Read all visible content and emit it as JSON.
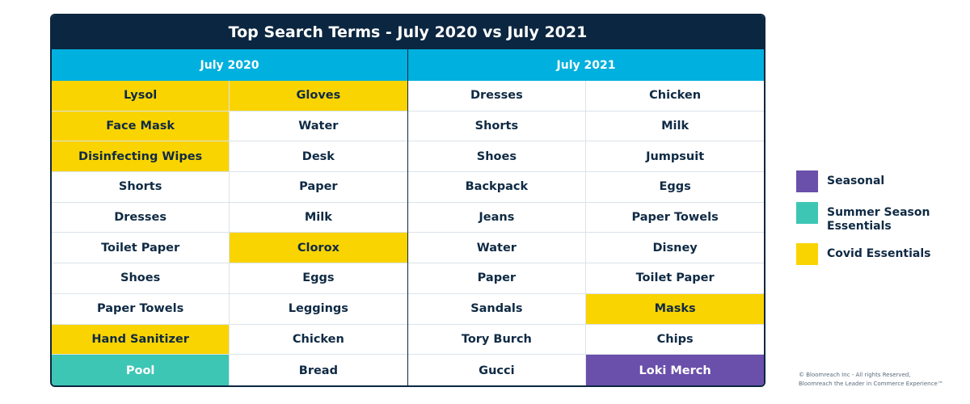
{
  "chart_data": {
    "type": "table",
    "title": "Top Search Terms - July 2020 vs July 2021",
    "headers": [
      "July 2020",
      "July 2021"
    ],
    "columns": [
      [
        {
          "term": "Lysol",
          "category": "covid"
        },
        {
          "term": "Face Mask",
          "category": "covid"
        },
        {
          "term": "Disinfecting Wipes",
          "category": "covid"
        },
        {
          "term": "Shorts",
          "category": ""
        },
        {
          "term": "Dresses",
          "category": ""
        },
        {
          "term": "Toilet Paper",
          "category": ""
        },
        {
          "term": "Shoes",
          "category": ""
        },
        {
          "term": "Paper Towels",
          "category": ""
        },
        {
          "term": "Hand Sanitizer",
          "category": "covid"
        },
        {
          "term": "Pool",
          "category": "summer"
        }
      ],
      [
        {
          "term": "Gloves",
          "category": "covid"
        },
        {
          "term": "Water",
          "category": ""
        },
        {
          "term": "Desk",
          "category": ""
        },
        {
          "term": "Paper",
          "category": ""
        },
        {
          "term": "Milk",
          "category": ""
        },
        {
          "term": "Clorox",
          "category": "covid"
        },
        {
          "term": "Eggs",
          "category": ""
        },
        {
          "term": "Leggings",
          "category": ""
        },
        {
          "term": "Chicken",
          "category": ""
        },
        {
          "term": "Bread",
          "category": ""
        }
      ],
      [
        {
          "term": "Dresses",
          "category": ""
        },
        {
          "term": "Shorts",
          "category": ""
        },
        {
          "term": "Shoes",
          "category": ""
        },
        {
          "term": "Backpack",
          "category": ""
        },
        {
          "term": "Jeans",
          "category": ""
        },
        {
          "term": "Water",
          "category": ""
        },
        {
          "term": "Paper",
          "category": ""
        },
        {
          "term": "Sandals",
          "category": ""
        },
        {
          "term": "Tory Burch",
          "category": ""
        },
        {
          "term": "Gucci",
          "category": ""
        }
      ],
      [
        {
          "term": "Chicken",
          "category": ""
        },
        {
          "term": "Milk",
          "category": ""
        },
        {
          "term": "Jumpsuit",
          "category": ""
        },
        {
          "term": "Eggs",
          "category": ""
        },
        {
          "term": "Paper Towels",
          "category": ""
        },
        {
          "term": "Disney",
          "category": ""
        },
        {
          "term": "Toilet Paper",
          "category": ""
        },
        {
          "term": "Masks",
          "category": "covid"
        },
        {
          "term": "Chips",
          "category": ""
        },
        {
          "term": "Loki Merch",
          "category": "seasonal"
        }
      ]
    ],
    "legend": [
      {
        "label": "Seasonal",
        "key": "seasonal",
        "color": "#6a4fab"
      },
      {
        "label": "Summer Season Essentials",
        "key": "summer",
        "color": "#3ec6b4"
      },
      {
        "label": "Covid Essentials",
        "key": "covid",
        "color": "#fad400"
      }
    ]
  },
  "footer": {
    "line1": "© Bloomreach Inc - All rights Reserved,",
    "line2": "Bloomreach the Leader in Commerce Experience™"
  }
}
